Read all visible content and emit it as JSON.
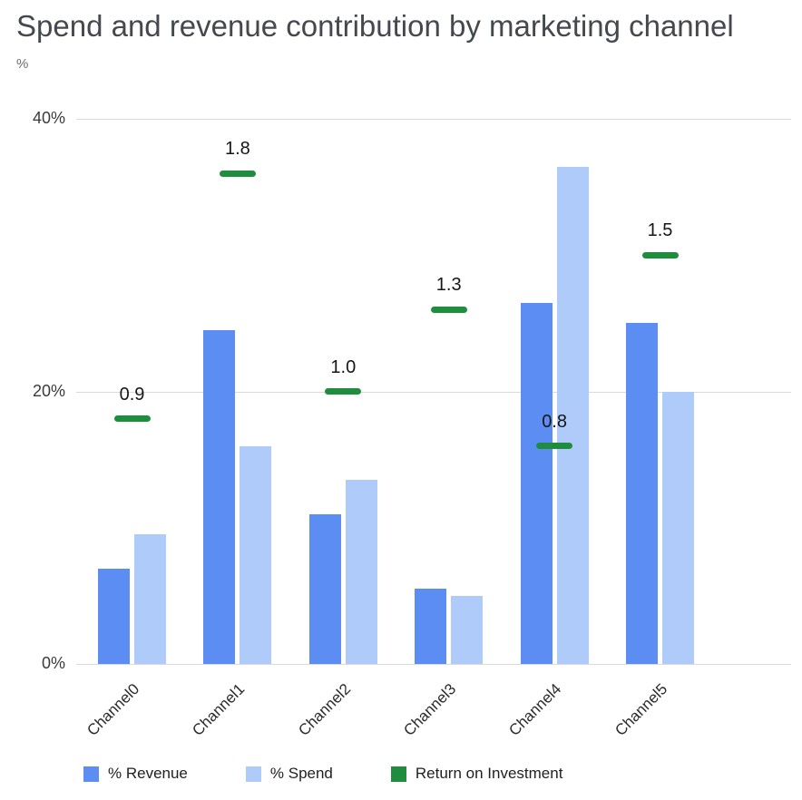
{
  "title": "Spend and revenue contribution by marketing channel",
  "y_axis_unit_label": "%",
  "colors": {
    "revenue": "#5c8df2",
    "spend": "#aecbfa",
    "roi": "#1e8e3e",
    "grid": "#dadada"
  },
  "legend": [
    {
      "label": "% Revenue",
      "color_key": "revenue"
    },
    {
      "label": "% Spend",
      "color_key": "spend"
    },
    {
      "label": "Return on Investment",
      "color_key": "roi"
    }
  ],
  "chart_data": {
    "type": "bar",
    "title": "Spend and revenue contribution by marketing channel",
    "xlabel": "",
    "ylabel": "%",
    "ylim": [
      0,
      40
    ],
    "grid": true,
    "legend_position": "bottom",
    "categories": [
      "Channel0",
      "Channel1",
      "Channel2",
      "Channel3",
      "Channel4",
      "Channel5"
    ],
    "yticks": [
      {
        "value": 0,
        "label": "0%"
      },
      {
        "value": 20,
        "label": "20%"
      },
      {
        "value": 40,
        "label": "40%"
      }
    ],
    "series": [
      {
        "name": "% Revenue",
        "type": "bar",
        "values": [
          7,
          24.5,
          11,
          5.5,
          26.5,
          25
        ]
      },
      {
        "name": "% Spend",
        "type": "bar",
        "values": [
          9.5,
          16,
          13.5,
          5,
          36.5,
          20
        ]
      },
      {
        "name": "Return on Investment",
        "type": "dash-marker",
        "axis": "secondary",
        "values": [
          0.9,
          1.8,
          1.0,
          1.3,
          0.8,
          1.5
        ],
        "labels": [
          "0.9",
          "1.8",
          "1.0",
          "1.3",
          "0.8",
          "1.5"
        ]
      }
    ]
  }
}
